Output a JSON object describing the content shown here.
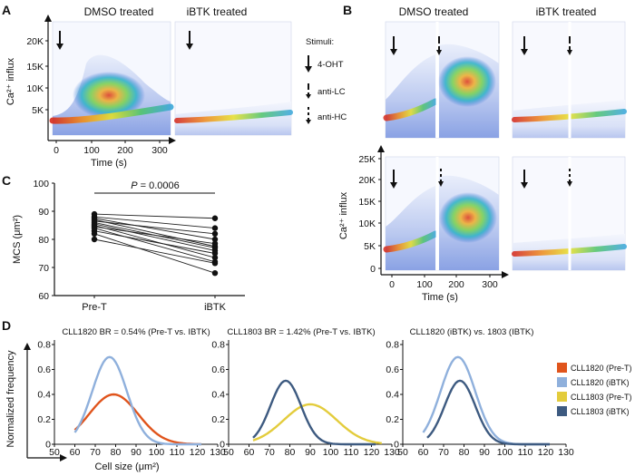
{
  "panels": {
    "A": {
      "letter": "A",
      "titles": [
        "DMSO treated",
        "iBTK treated"
      ],
      "ylabel": "Ca²⁺ influx",
      "xlabel": "Time (s)",
      "yticks": [
        "5K",
        "10K",
        "15K",
        "20K"
      ],
      "xticks": [
        "0",
        "100",
        "200",
        "300"
      ],
      "stimuli": {
        "header": "Stimuli:",
        "items": [
          {
            "name": "4-OHT",
            "style": "solid"
          },
          {
            "name": "anti-LC",
            "style": "dashed"
          },
          {
            "name": "anti-HC",
            "style": "dotted"
          }
        ]
      }
    },
    "B": {
      "letter": "B",
      "titles": [
        "DMSO treated",
        "iBTK treated"
      ],
      "ylabel": "Ca²⁺ influx",
      "xlabel": "Time (s)",
      "yticks": [
        "0",
        "5K",
        "10K",
        "15K",
        "20K",
        "25K"
      ],
      "xticks": [
        "0",
        "100",
        "200",
        "300"
      ]
    },
    "C": {
      "letter": "C",
      "pvalue_prefix": "P",
      "pvalue_text": " = 0.0006",
      "ylabel": "MCS (μm²)",
      "xcats": [
        "Pre-T",
        "iBTK"
      ],
      "yticks": [
        "60",
        "70",
        "80",
        "90",
        "100"
      ]
    },
    "D": {
      "letter": "D",
      "titles": [
        "CLL1820 BR = 0.54% (Pre-T vs. IBTK)",
        "CLL1803 BR = 1.42% (Pre-T vs. IBTK)",
        "CLL1820 (iBTK) vs. 1803 (IBTK)"
      ],
      "ylabel": "Normalized frequency",
      "xlabel": "Cell size (μm²)",
      "yticks": [
        "0",
        "0.2",
        "0.4",
        "0.6",
        "0.8"
      ],
      "xticks": [
        "50",
        "60",
        "70",
        "80",
        "90",
        "100",
        "110",
        "120",
        "130"
      ],
      "legend": [
        {
          "label": "CLL1820 (Pre-T)",
          "color": "#e0541c"
        },
        {
          "label": "CLL1820 (iBTK)",
          "color": "#8fb0dc"
        },
        {
          "label": "CLL1803 (Pre-T)",
          "color": "#e3cc3c"
        },
        {
          "label": "CLL1803 (iBTK)",
          "color": "#3d5a80"
        }
      ]
    }
  },
  "chart_data": [
    {
      "type": "scatter",
      "id": "C",
      "title": "",
      "xlabel": "",
      "ylabel": "MCS (μm²)",
      "categories": [
        "Pre-T",
        "iBTK"
      ],
      "ylim": [
        60,
        100
      ],
      "paired_values": [
        [
          89,
          87.5
        ],
        [
          88,
          84
        ],
        [
          87.5,
          80
        ],
        [
          87,
          77.5
        ],
        [
          86.5,
          82
        ],
        [
          86,
          77
        ],
        [
          85.5,
          76
        ],
        [
          85,
          73.5
        ],
        [
          84.5,
          78.5
        ],
        [
          84,
          72
        ],
        [
          83,
          75
        ],
        [
          82,
          68
        ],
        [
          80,
          71.5
        ]
      ],
      "annotation": "P = 0.0006"
    },
    {
      "type": "line",
      "id": "D1",
      "title": "CLL1820 BR = 0.54% (Pre-T vs. IBTK)",
      "xlabel": "Cell size (μm²)",
      "ylabel": "Normalized frequency",
      "xlim": [
        50,
        130
      ],
      "ylim": [
        0,
        0.8
      ],
      "series": [
        {
          "name": "CLL1820 (Pre-T)",
          "color": "#e0541c",
          "peak_x": 79,
          "peak_y": 0.4,
          "sd": 12,
          "x_range": [
            60,
            122
          ]
        },
        {
          "name": "CLL1820 (iBTK)",
          "color": "#8fb0dc",
          "peak_x": 77,
          "peak_y": 0.7,
          "sd": 8.5,
          "x_range": [
            60,
            122
          ]
        }
      ]
    },
    {
      "type": "line",
      "id": "D2",
      "title": "CLL1803 BR = 1.42% (Pre-T vs. IBTK)",
      "xlabel": "Cell size (μm²)",
      "ylabel": "Normalized frequency",
      "xlim": [
        50,
        130
      ],
      "ylim": [
        0,
        0.8
      ],
      "series": [
        {
          "name": "CLL1803 (Pre-T)",
          "color": "#e3cc3c",
          "peak_x": 90,
          "peak_y": 0.32,
          "sd": 13,
          "x_range": [
            62,
            125
          ]
        },
        {
          "name": "CLL1803 (iBTK)",
          "color": "#3d5a80",
          "peak_x": 78,
          "peak_y": 0.51,
          "sd": 7.5,
          "x_range": [
            62,
            122
          ]
        }
      ]
    },
    {
      "type": "line",
      "id": "D3",
      "title": "CLL1820 (iBTK) vs. 1803 (IBTK)",
      "xlabel": "Cell size (μm²)",
      "ylabel": "Normalized frequency",
      "xlim": [
        50,
        130
      ],
      "ylim": [
        0,
        0.8
      ],
      "series": [
        {
          "name": "CLL1820 (iBTK)",
          "color": "#8fb0dc",
          "peak_x": 77,
          "peak_y": 0.7,
          "sd": 8.5,
          "x_range": [
            60,
            122
          ]
        },
        {
          "name": "CLL1803 (iBTK)",
          "color": "#3d5a80",
          "peak_x": 78,
          "peak_y": 0.51,
          "sd": 7.5,
          "x_range": [
            62,
            122
          ]
        }
      ]
    }
  ]
}
